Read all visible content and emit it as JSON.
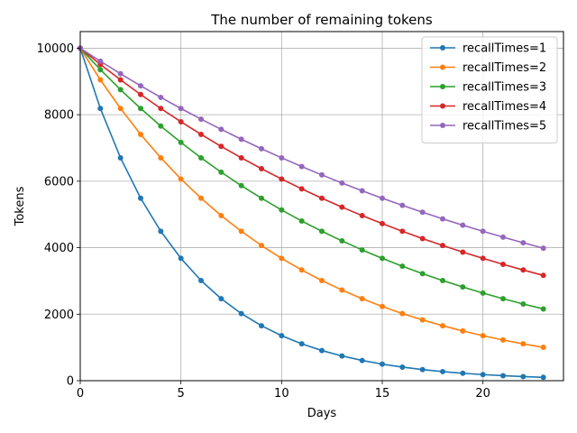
{
  "chart_data": {
    "type": "line",
    "title": "The number of remaining tokens",
    "xlabel": "Days",
    "ylabel": "Tokens",
    "xlim": [
      0,
      24
    ],
    "ylim": [
      0,
      10500
    ],
    "xticks": [
      0,
      5,
      10,
      15,
      20
    ],
    "yticks": [
      0,
      2000,
      4000,
      6000,
      8000,
      10000
    ],
    "grid": true,
    "legend_position": "top-right",
    "x": [
      0,
      1,
      2,
      3,
      4,
      5,
      6,
      7,
      8,
      9,
      10,
      11,
      12,
      13,
      14,
      15,
      16,
      17,
      18,
      19,
      20,
      21,
      22,
      23
    ],
    "series": [
      {
        "name": "recallTimes=1",
        "color": "#1f77b4",
        "values": [
          10000,
          8187,
          6703,
          5488,
          4493,
          3679,
          3012,
          2466,
          2019,
          1653,
          1353,
          1108,
          907,
          743,
          608,
          498,
          408,
          334,
          273,
          224,
          183,
          150,
          123,
          100
        ]
      },
      {
        "name": "recallTimes=2",
        "color": "#ff7f0e",
        "values": [
          10000,
          9048,
          8187,
          7408,
          6703,
          6065,
          5488,
          4966,
          4493,
          4066,
          3679,
          3329,
          3012,
          2725,
          2466,
          2231,
          2019,
          1827,
          1653,
          1496,
          1353,
          1225,
          1108,
          1003
        ]
      },
      {
        "name": "recallTimes=3",
        "color": "#2ca02c",
        "values": [
          10000,
          9355,
          8752,
          8187,
          7659,
          7165,
          6703,
          6271,
          5866,
          5488,
          5134,
          4803,
          4493,
          4204,
          3932,
          3679,
          3441,
          3220,
          3012,
          2818,
          2636,
          2466,
          2307,
          2158
        ]
      },
      {
        "name": "recallTimes=4",
        "color": "#d62728",
        "values": [
          10000,
          9512,
          9048,
          8607,
          8187,
          7788,
          7408,
          7047,
          6703,
          6376,
          6065,
          5769,
          5488,
          5220,
          4966,
          4724,
          4493,
          4274,
          4066,
          3867,
          3679,
          3499,
          3329,
          3166
        ]
      },
      {
        "name": "recallTimes=5",
        "color": "#9467bd",
        "values": [
          10000,
          9608,
          9231,
          8869,
          8521,
          8187,
          7866,
          7558,
          7261,
          6977,
          6703,
          6440,
          6188,
          5945,
          5712,
          5488,
          5273,
          5066,
          4868,
          4677,
          4493,
          4317,
          4148,
          3985
        ]
      }
    ]
  }
}
